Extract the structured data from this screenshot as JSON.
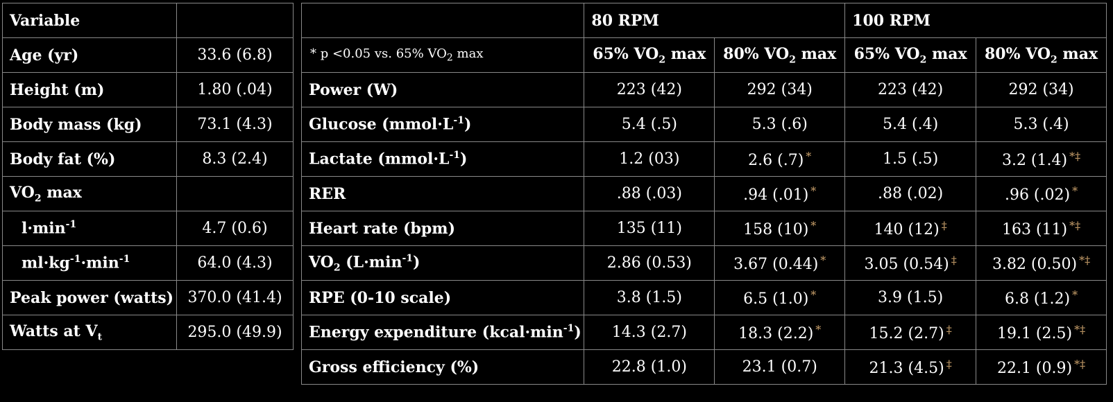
{
  "left_table": {
    "header": {
      "label": "Variable",
      "value": ""
    },
    "rows": [
      {
        "label": "Age (yr)",
        "value": "33.6 (6.8)"
      },
      {
        "label": "Height (m)",
        "value": "1.80 (.04)"
      },
      {
        "label": "Body mass (kg)",
        "value": "73.1 (4.3)"
      },
      {
        "label": "Body fat (%)",
        "value": "8.3 (2.4)"
      },
      {
        "label_pre": "VO",
        "label_sub": "2",
        "label_post": " max",
        "value": ""
      },
      {
        "label_pre": "l·min",
        "label_sup": "-1",
        "value": "4.7 (0.6)"
      },
      {
        "label_a": "ml·kg",
        "sup_a": "-1",
        "label_b": "·min",
        "sup_b": "-1",
        "value": "64.0 (4.3)"
      },
      {
        "label": "Peak power (watts)",
        "value": "370.0 (41.4)"
      },
      {
        "label_pre": "Watts at V",
        "label_sub": "t",
        "value": "295.0 (49.9)"
      }
    ]
  },
  "right_table": {
    "groups": [
      "80 RPM",
      "100 RPM"
    ],
    "note": {
      "pre": "* p <0.05 vs. 65% VO",
      "sub": "2",
      "post": " max"
    },
    "columns": [
      {
        "pre": "65% VO",
        "sub": "2",
        "post": " max"
      },
      {
        "pre": "80% VO",
        "sub": "2",
        "post": " max"
      },
      {
        "pre": "65% VO",
        "sub": "2",
        "post": " max"
      },
      {
        "pre": "80% VO",
        "sub": "2",
        "post": " max"
      }
    ],
    "rows": [
      {
        "label_pre": "Power (W)",
        "values": [
          {
            "v": "223 (42)",
            "m": ""
          },
          {
            "v": "292 (34)",
            "m": ""
          },
          {
            "v": "223 (42)",
            "m": ""
          },
          {
            "v": "292 (34)",
            "m": ""
          }
        ]
      },
      {
        "label_pre": "Glucose (mmol·L",
        "label_sup": "-1",
        "label_post": ")",
        "values": [
          {
            "v": "5.4 (.5)",
            "m": ""
          },
          {
            "v": "5.3 (.6)",
            "m": ""
          },
          {
            "v": "5.4 (.4)",
            "m": ""
          },
          {
            "v": "5.3 (.4)",
            "m": ""
          }
        ]
      },
      {
        "label_pre": "Lactate (mmol·L",
        "label_sup": "-1",
        "label_post": ")",
        "values": [
          {
            "v": "1.2 (03)",
            "m": ""
          },
          {
            "v": "2.6 (.7)",
            "m": "*"
          },
          {
            "v": "1.5 (.5)",
            "m": ""
          },
          {
            "v": "3.2 (1.4)",
            "m": "*‡"
          }
        ]
      },
      {
        "label_pre": "RER",
        "values": [
          {
            "v": ".88 (.03)",
            "m": ""
          },
          {
            "v": ".94 (.01)",
            "m": "*"
          },
          {
            "v": ".88 (.02)",
            "m": ""
          },
          {
            "v": ".96 (.02)",
            "m": "*"
          }
        ]
      },
      {
        "label_pre": "Heart rate (bpm)",
        "values": [
          {
            "v": "135 (11)",
            "m": ""
          },
          {
            "v": "158 (10)",
            "m": "*"
          },
          {
            "v": "140 (12)",
            "m": "‡"
          },
          {
            "v": "163 (11)",
            "m": "*‡"
          }
        ]
      },
      {
        "label_pre": "VO",
        "label_sub": "2",
        "label_mid": " (L·min",
        "label_sup": "-1",
        "label_post": ")",
        "values": [
          {
            "v": "2.86 (0.53)",
            "m": ""
          },
          {
            "v": "3.67 (0.44)",
            "m": "*"
          },
          {
            "v": "3.05 (0.54)",
            "m": "‡"
          },
          {
            "v": "3.82 (0.50)",
            "m": "*‡"
          }
        ]
      },
      {
        "label_pre": "RPE (0-10 scale)",
        "values": [
          {
            "v": "3.8 (1.5)",
            "m": ""
          },
          {
            "v": "6.5 (1.0)",
            "m": "*"
          },
          {
            "v": "3.9 (1.5)",
            "m": ""
          },
          {
            "v": "6.8 (1.2)",
            "m": "*"
          }
        ]
      },
      {
        "label_pre": "Energy expenditure (kcal·min",
        "label_sup": "-1",
        "label_post": ")",
        "values": [
          {
            "v": "14.3 (2.7)",
            "m": ""
          },
          {
            "v": "18.3 (2.2)",
            "m": "*"
          },
          {
            "v": "15.2 (2.7)",
            "m": "‡"
          },
          {
            "v": "19.1 (2.5)",
            "m": "*‡"
          }
        ]
      },
      {
        "label_pre": "Gross efficiency (%)",
        "values": [
          {
            "v": "22.8 (1.0)",
            "m": ""
          },
          {
            "v": "23.1 (0.7)",
            "m": ""
          },
          {
            "v": "21.3 (4.5)",
            "m": "‡"
          },
          {
            "v": "22.1 (0.9)",
            "m": "*‡"
          }
        ]
      }
    ]
  },
  "colors": {
    "background": "#000000",
    "text": "#ffffff",
    "grid": "#8a8a8a",
    "marker": "#c9a06b"
  }
}
